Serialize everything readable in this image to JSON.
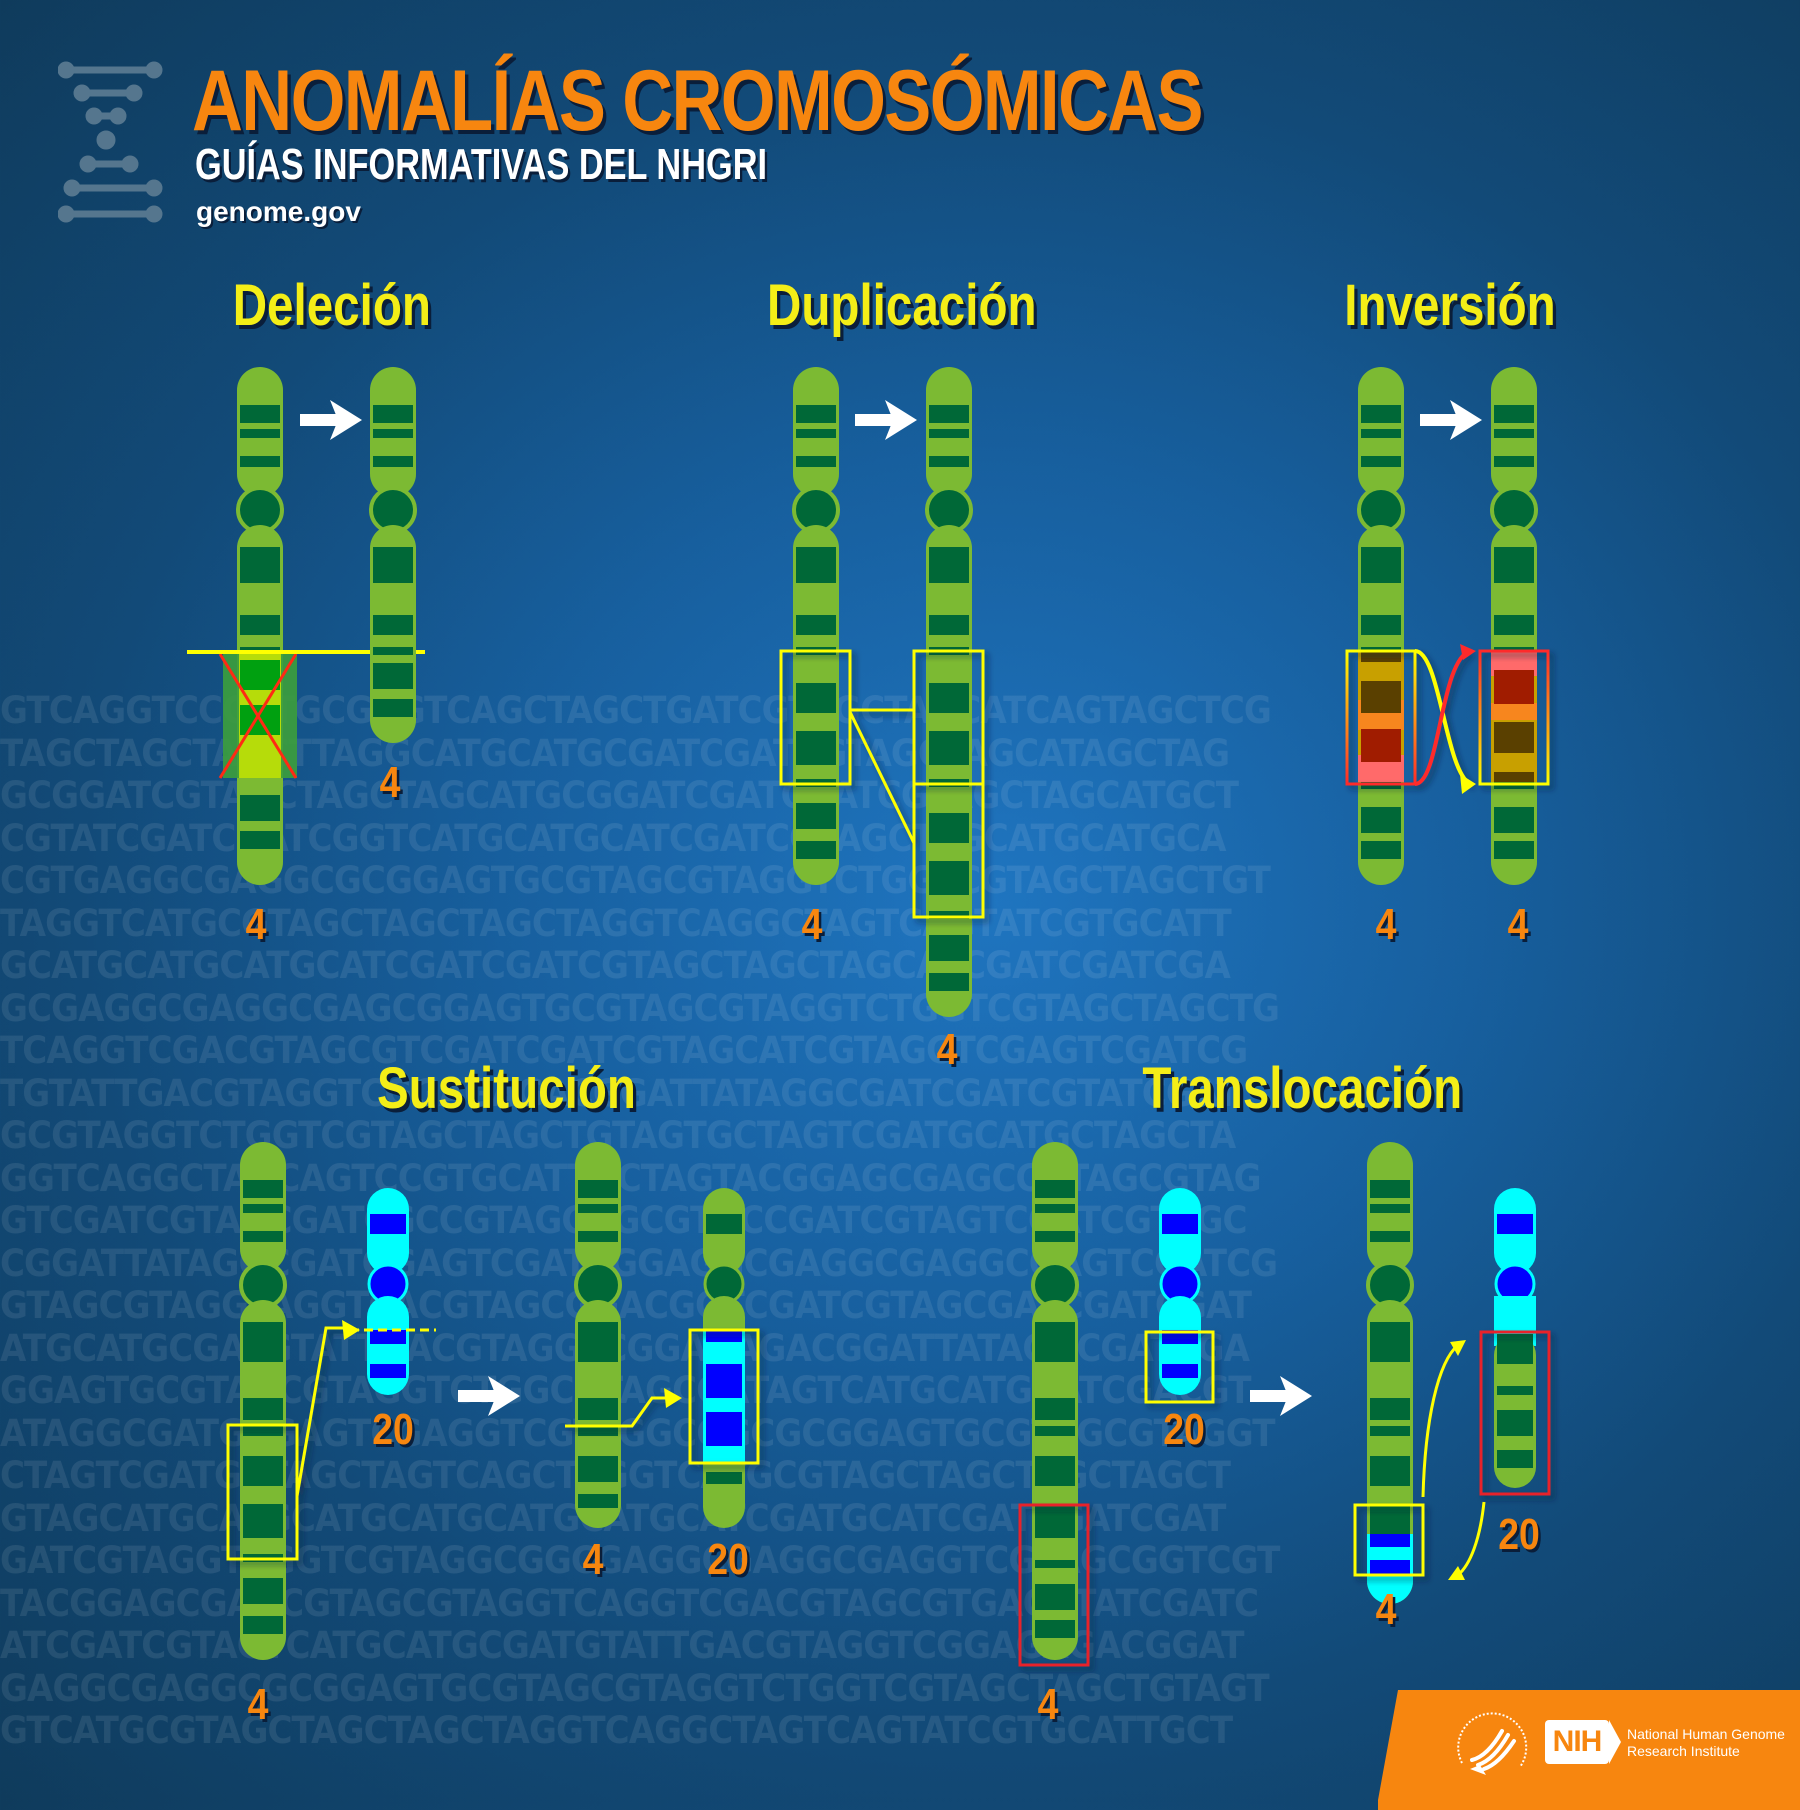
{
  "header": {
    "title": "ANOMALÍAS CROMOSÓMICAS",
    "subtitle": "GUÍAS INFORMATIVAS DEL NHGRI",
    "site": "genome.gov",
    "logo_icon": "dna-ladder-icon"
  },
  "colors": {
    "title_orange": "#f7860f",
    "section_yellow": "#f4ee17",
    "chromosome_green": "#7cba33",
    "band_dark_green": "#006837",
    "chr20_cyan": "#00ffff",
    "chr20_band_blue": "#0000ff",
    "highlight_yellow": "#ffff00",
    "highlight_red": "#e8222c",
    "background_blue": "#1a6aae"
  },
  "sections": {
    "deletion": {
      "title": "Deleción",
      "labels": [
        "4",
        "4"
      ]
    },
    "duplication": {
      "title": "Duplicación",
      "labels": [
        "4",
        "4"
      ]
    },
    "inversion": {
      "title": "Inversión",
      "labels": [
        "4",
        "4"
      ]
    },
    "substitution": {
      "title": "Sustitución",
      "labels": [
        "4",
        "20",
        "4",
        "20"
      ]
    },
    "translocation": {
      "title": "Translocación",
      "labels": [
        "4",
        "20",
        "4",
        "20"
      ]
    }
  },
  "background_dna": [
    "GTCAGGTCCGATGCGAGTCAGCTAGCTGATCGTAGCTAGCATCAGTAGCTCG",
    "TAGCTAGCTAGCTTAGGCATGCATGCGATCGATCGTAGCTAGCATAGCTAG",
    "GCGGATCGTAGCTAGCTAGCATGCGGATCGATCGATCGTAGCTAGCATGCT",
    "CGTATCGATCGATCGGTCATGCATGCATCGATCGTAGCTAGCATGCATGCA",
    "CGTGAGGCGAGGCGCGGAGTGCGTAGCGTAGGTCTGGTCGTAGCTAGCTGT",
    "TAGGTCATGCGTAGCTAGCTAGCTAGGTCAGGCTAGTCAGTATCGTGCATT",
    "GCATGCATGCATGCATCGATCGATCGTAGCTAGCTAGCATCGATCGATCGA",
    "GCGAGGCGAGGCGAGCGGAGTGCGTAGCGTAGGTCTGGTCGTAGCTAGCTG",
    "TCAGGTCGACGTAGCGTCGATCGATCGTAGCATCGTAGGTCGAGTCGATCG",
    "TGTATTGACGTAGGTCGGAGAGACGGATTATAGGCGATCGATCGTATCGAT",
    "GCGTAGGTCTGGTCGTAGCTAGCTGTAGTGCTAGTCGATGCATGCTAGCTA",
    "GGTCAGGCTAGCAGTCCGTGCATTGCTAGTACGGAGCGAGCCGTAGCGTAG",
    "GTCGATCGTAGCGATCGCCGTAGCGGCGTGCCGATCGTAGTCGATCGTAGC",
    "CGGATTATAGGCGATGGAGTCGATCGGAGGCGAGGCGAGGCGAGTCGATCG",
    "GTAGCGTAGGTAGGTCACGTAGCGGACGGTCGATCGTAGCGATCGATCGAT",
    "ATGCATGCGATGTATTGACGTAGGTCGGAGAGACGGATTATAGGCGATCGA",
    "GGAGTGCGTAGCGTAGGTCTGGCGTAGCGATAGTCATGCATGCATCGACGT",
    "ATAGGCGATGCGAGTCGAGGTCGTAGGCGGCGCGGAGTGCGTAGCGTAGGT",
    "CTAGTCGATGCTAGCTAGTCAGCTAGGTCATGCGTAGCTAGCTAGCTAGCT",
    "GTAGCATGCATGCATGCATGCATGCATGCATCGATGCATCGATCGATCGAT",
    "GATCGTAGGTCGGTCGTAGGCGGCGAGGCGAGGCGAGGTCGTAGCGGTCGT",
    "TACGGAGCGAGCGTAGCGTAGGTCAGGTCGACGTAGCGTGACGTATCGATC",
    "ATCGATCGTAGTCATGCATGCGATGTATTGACGTAGGTCGGAGAGACGGAT",
    "GAGGCGAGGCGCGGAGTGCGTAGCGTAGGTCTGGTCGTAGCTAGCTGTAGT",
    "GTCATGCGTAGCTAGCTAGCTAGGTCAGGCTAGTCAGTATCGTGCATTGCT"
  ],
  "footer": {
    "hhs_icon": "hhs-eagle-seal-icon",
    "nih_badge": "NIH",
    "institute_line1": "National Human Genome",
    "institute_line2": "Research Institute"
  }
}
